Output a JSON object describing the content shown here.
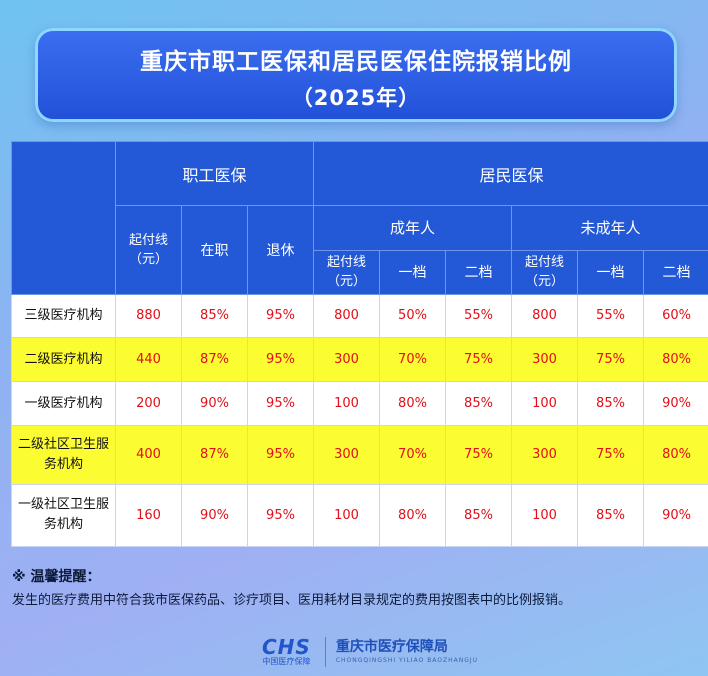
{
  "title": {
    "line1": "重庆市职工医保和居民医保住院报销比例",
    "line2": "（2025年）"
  },
  "table": {
    "header": {
      "employee": "职工医保",
      "resident": "居民医保",
      "adult": "成年人",
      "minor": "未成年人",
      "deductible_1": "起付线",
      "deductible_2": "（元）",
      "active": "在职",
      "retired": "退休",
      "tier1": "一档",
      "tier2": "二档"
    },
    "rows": [
      {
        "name": "三级医疗机构",
        "values": [
          "880",
          "85%",
          "95%",
          "800",
          "50%",
          "55%",
          "800",
          "55%",
          "60%"
        ]
      },
      {
        "name": "二级医疗机构",
        "values": [
          "440",
          "87%",
          "95%",
          "300",
          "70%",
          "75%",
          "300",
          "75%",
          "80%"
        ]
      },
      {
        "name": "一级医疗机构",
        "values": [
          "200",
          "90%",
          "95%",
          "100",
          "80%",
          "85%",
          "100",
          "85%",
          "90%"
        ]
      },
      {
        "name": "二级社区卫生服务机构",
        "values": [
          "400",
          "87%",
          "95%",
          "300",
          "70%",
          "75%",
          "300",
          "75%",
          "80%"
        ]
      },
      {
        "name": "一级社区卫生服务机构",
        "values": [
          "160",
          "90%",
          "95%",
          "100",
          "80%",
          "85%",
          "100",
          "85%",
          "90%"
        ]
      }
    ]
  },
  "tips": {
    "title": "※ 温馨提醒：",
    "text": "发生的医疗费用中符合我市医保药品、诊疗项目、医用耗材目录规定的费用按图表中的比例报销。"
  },
  "footer": {
    "logo_mark": "CHS",
    "logo_sub": "中国医疗保障",
    "org_name": "重庆市医疗保障局",
    "org_pinyin": "CHONGQINGSHI YILIAO BAOZHANGJU"
  },
  "colors": {
    "header_blue": "#2358d6",
    "highlight_yellow": "#fcfc32",
    "value_red": "#e0101a"
  }
}
